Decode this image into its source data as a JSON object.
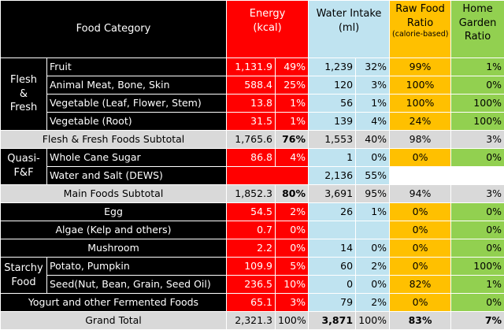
{
  "headers": {
    "category": "Food Category",
    "energy": "Energy\n(kcal)",
    "water": "Water Intake\n(ml)",
    "raw_title": "Raw Food\nRatio",
    "raw_sub": "(calorie-based)",
    "home": "Home\nGarden\nRatio"
  },
  "groups": {
    "flesh": "Flesh\n&\nFresh",
    "quasi": "Quasi-\nF&F",
    "starchy": "Starchy\nFood"
  },
  "rows": [
    {
      "name": "Fruit",
      "energy": "1,131.9",
      "energy_pct": "49%",
      "water": "1,239",
      "water_pct": "32%",
      "raw": "99%",
      "home": "1%"
    },
    {
      "name": "Animal Meat, Bone, Skin",
      "energy": "588.4",
      "energy_pct": "25%",
      "water": "120",
      "water_pct": "3%",
      "raw": "100%",
      "home": "0%"
    },
    {
      "name": "Vegetable (Leaf, Flower, Stem)",
      "energy": "13.8",
      "energy_pct": "1%",
      "water": "56",
      "water_pct": "1%",
      "raw": "100%",
      "home": "100%"
    },
    {
      "name": "Vegetable (Root)",
      "energy": "31.5",
      "energy_pct": "1%",
      "water": "139",
      "water_pct": "4%",
      "raw": "24%",
      "home": "100%"
    },
    {
      "name": "Flesh & Fresh Foods Subtotal",
      "energy": "1,765.6",
      "energy_pct": "76%",
      "water": "1,553",
      "water_pct": "40%",
      "raw": "98%",
      "home": "3%"
    },
    {
      "name": "Whole Cane Sugar",
      "energy": "86.8",
      "energy_pct": "4%",
      "water": "1",
      "water_pct": "0%",
      "raw": "0%",
      "home": "0%"
    },
    {
      "name": "Water and Salt (DEWS)",
      "energy": "",
      "energy_pct": "",
      "water": "2,136",
      "water_pct": "55%",
      "raw": "",
      "home": ""
    },
    {
      "name": "Main Foods Subtotal",
      "energy": "1,852.3",
      "energy_pct": "80%",
      "water": "3,691",
      "water_pct": "95%",
      "raw": "94%",
      "home": "3%"
    },
    {
      "name": "Egg",
      "energy": "54.5",
      "energy_pct": "2%",
      "water": "26",
      "water_pct": "1%",
      "raw": "0%",
      "home": "0%"
    },
    {
      "name": "Algae (Kelp and others)",
      "energy": "0.7",
      "energy_pct": "0%",
      "water": "",
      "water_pct": "",
      "raw": "0%",
      "home": "0%"
    },
    {
      "name": "Mushroom",
      "energy": "2.2",
      "energy_pct": "0%",
      "water": "14",
      "water_pct": "0%",
      "raw": "0%",
      "home": "0%"
    },
    {
      "name": "Potato, Pumpkin",
      "energy": "109.9",
      "energy_pct": "5%",
      "water": "60",
      "water_pct": "2%",
      "raw": "0%",
      "home": "100%"
    },
    {
      "name": "Seed(Nut, Bean, Grain, Seed Oil)",
      "energy": "236.5",
      "energy_pct": "10%",
      "water": "0",
      "water_pct": "0%",
      "raw": "82%",
      "home": "1%"
    },
    {
      "name": "Yogurt and other Fermented Foods",
      "energy": "65.1",
      "energy_pct": "3%",
      "water": "79",
      "water_pct": "2%",
      "raw": "0%",
      "home": "0%"
    },
    {
      "name": "Grand Total",
      "energy": "2,321.3",
      "energy_pct": "100%",
      "water": "3,871",
      "water_pct": "100%",
      "raw": "83%",
      "home": "7%"
    }
  ],
  "colors": {
    "energy": "#ff0000",
    "water": "#bfe3f0",
    "raw": "#ffc000",
    "home": "#92d050",
    "subtotal": "#d9d9d9",
    "category": "#000000"
  }
}
